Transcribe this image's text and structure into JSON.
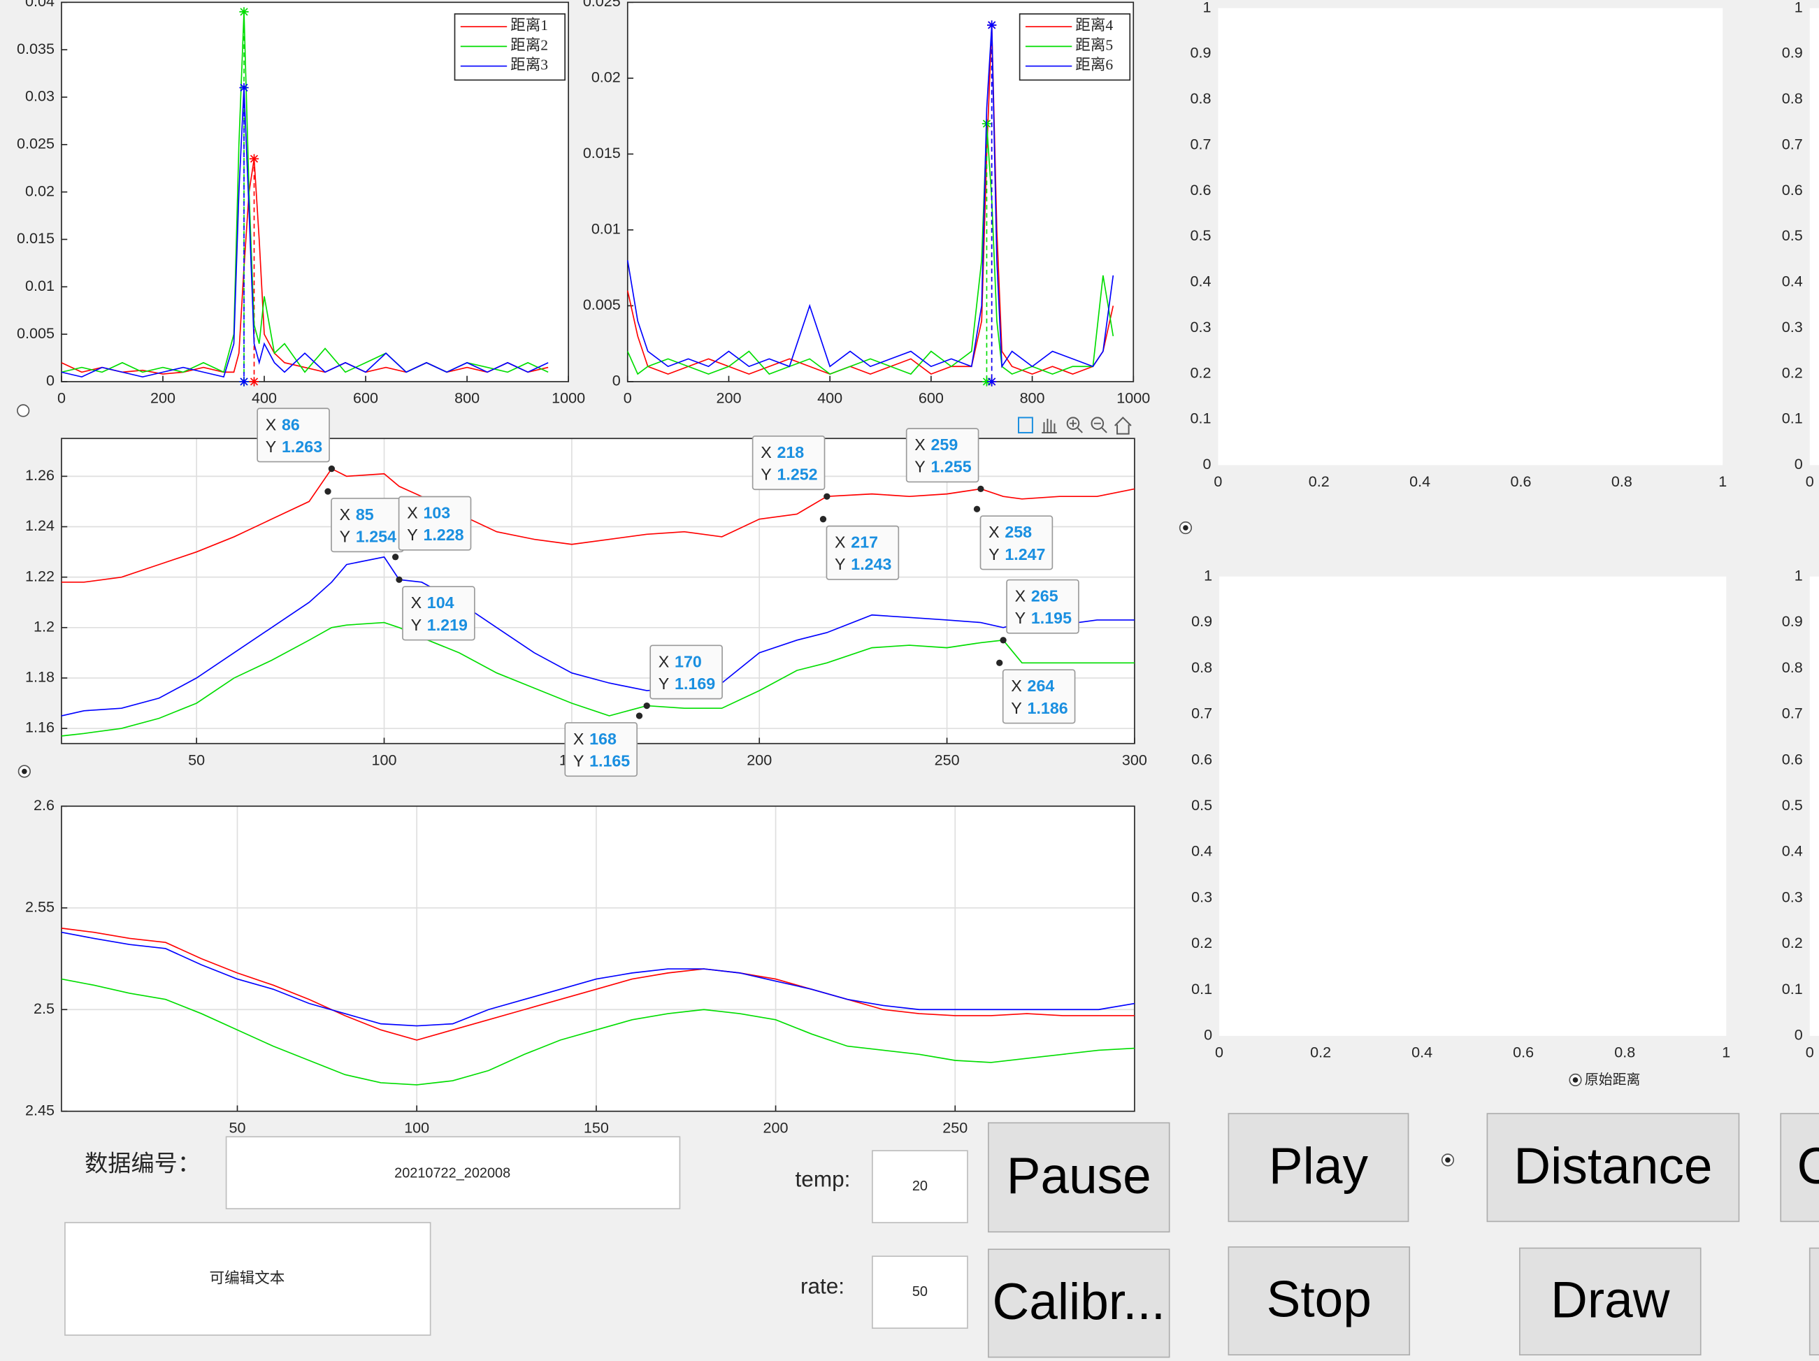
{
  "chart_data": [
    {
      "type": "line",
      "xlim": [
        0,
        1000
      ],
      "xticks": [
        0,
        200,
        400,
        600,
        800,
        1000
      ],
      "ylim": [
        0,
        0.04
      ],
      "yticks": [
        0,
        0.005,
        0.01,
        0.015,
        0.02,
        0.025,
        0.03,
        0.035,
        0.04
      ],
      "grid": false,
      "legend": "northeast",
      "peak_markers": true,
      "x": [
        0,
        40,
        80,
        120,
        160,
        200,
        240,
        280,
        320,
        340,
        350,
        360,
        370,
        380,
        390,
        400,
        420,
        440,
        480,
        520,
        560,
        600,
        640,
        680,
        720,
        760,
        800,
        840,
        880,
        920,
        960
      ],
      "series": [
        {
          "name": "距离1",
          "color": "#ff0000",
          "values": [
            0.002,
            0.001,
            0.0015,
            0.001,
            0.0012,
            0.0008,
            0.001,
            0.0015,
            0.001,
            0.001,
            0.003,
            0.012,
            0.02,
            0.0235,
            0.015,
            0.005,
            0.003,
            0.002,
            0.0015,
            0.001,
            0.002,
            0.001,
            0.0015,
            0.001,
            0.002,
            0.001,
            0.0015,
            0.001,
            0.002,
            0.001,
            0.0015
          ]
        },
        {
          "name": "距离2",
          "color": "#00dd00",
          "values": [
            0.001,
            0.0015,
            0.001,
            0.002,
            0.001,
            0.0015,
            0.001,
            0.002,
            0.001,
            0.005,
            0.025,
            0.039,
            0.02,
            0.006,
            0.004,
            0.009,
            0.003,
            0.004,
            0.001,
            0.0035,
            0.001,
            0.002,
            0.003,
            0.001,
            0.002,
            0.001,
            0.002,
            0.0015,
            0.001,
            0.002,
            0.001
          ]
        },
        {
          "name": "距离3",
          "color": "#0000ff",
          "values": [
            0.001,
            0.0005,
            0.0015,
            0.001,
            0.0005,
            0.001,
            0.0015,
            0.001,
            0.0005,
            0.004,
            0.02,
            0.031,
            0.018,
            0.004,
            0.002,
            0.004,
            0.002,
            0.001,
            0.003,
            0.001,
            0.002,
            0.001,
            0.003,
            0.001,
            0.002,
            0.001,
            0.002,
            0.001,
            0.002,
            0.001,
            0.002
          ]
        }
      ]
    },
    {
      "type": "line",
      "xlim": [
        0,
        1000
      ],
      "xticks": [
        0,
        200,
        400,
        600,
        800,
        1000
      ],
      "ylim": [
        0,
        0.025
      ],
      "yticks": [
        0,
        0.005,
        0.01,
        0.015,
        0.02,
        0.025
      ],
      "grid": false,
      "legend": "northeast",
      "peak_markers": true,
      "x": [
        0,
        20,
        40,
        80,
        120,
        160,
        200,
        240,
        280,
        320,
        360,
        400,
        440,
        480,
        520,
        560,
        600,
        640,
        680,
        700,
        710,
        720,
        730,
        740,
        760,
        800,
        840,
        880,
        920,
        940,
        960
      ],
      "series": [
        {
          "name": "距离4",
          "color": "#ff0000",
          "values": [
            0.006,
            0.003,
            0.001,
            0.0005,
            0.001,
            0.0015,
            0.001,
            0.0005,
            0.001,
            0.0015,
            0.001,
            0.0005,
            0.001,
            0.0005,
            0.001,
            0.0015,
            0.0005,
            0.001,
            0.001,
            0.004,
            0.015,
            0.0235,
            0.01,
            0.002,
            0.001,
            0.0005,
            0.001,
            0.0005,
            0.001,
            0.002,
            0.005
          ]
        },
        {
          "name": "距离5",
          "color": "#00dd00",
          "values": [
            0.002,
            0.0005,
            0.001,
            0.0015,
            0.001,
            0.0005,
            0.001,
            0.002,
            0.0005,
            0.001,
            0.0015,
            0.0005,
            0.001,
            0.0015,
            0.001,
            0.0005,
            0.002,
            0.001,
            0.002,
            0.008,
            0.017,
            0.012,
            0.004,
            0.001,
            0.0005,
            0.001,
            0.0005,
            0.001,
            0.001,
            0.007,
            0.003
          ]
        },
        {
          "name": "距离6",
          "color": "#0000ff",
          "values": [
            0.008,
            0.004,
            0.002,
            0.001,
            0.0015,
            0.001,
            0.002,
            0.001,
            0.0015,
            0.001,
            0.005,
            0.001,
            0.002,
            0.001,
            0.0015,
            0.002,
            0.001,
            0.0015,
            0.001,
            0.005,
            0.018,
            0.0235,
            0.008,
            0.001,
            0.002,
            0.001,
            0.002,
            0.0015,
            0.001,
            0.002,
            0.007
          ]
        }
      ]
    },
    {
      "type": "line",
      "xlim": [
        14,
        300
      ],
      "xticks": [
        50,
        100,
        150,
        200,
        250,
        300
      ],
      "ylim": [
        1.154,
        1.275
      ],
      "yticks": [
        1.16,
        1.18,
        1.2,
        1.22,
        1.24,
        1.26
      ],
      "grid": true,
      "x": [
        14,
        20,
        30,
        40,
        50,
        60,
        70,
        80,
        86,
        90,
        100,
        104,
        110,
        120,
        130,
        140,
        150,
        160,
        170,
        180,
        190,
        200,
        210,
        218,
        230,
        240,
        250,
        259,
        265,
        270,
        280,
        290,
        300
      ],
      "series": [
        {
          "color": "#ff0000",
          "values": [
            1.218,
            1.218,
            1.22,
            1.225,
            1.23,
            1.236,
            1.243,
            1.25,
            1.263,
            1.26,
            1.261,
            1.256,
            1.252,
            1.245,
            1.238,
            1.235,
            1.233,
            1.235,
            1.237,
            1.238,
            1.236,
            1.243,
            1.245,
            1.252,
            1.253,
            1.252,
            1.253,
            1.255,
            1.252,
            1.251,
            1.252,
            1.252,
            1.255
          ]
        },
        {
          "color": "#0000ff",
          "values": [
            1.165,
            1.167,
            1.168,
            1.172,
            1.18,
            1.19,
            1.2,
            1.21,
            1.218,
            1.225,
            1.228,
            1.219,
            1.218,
            1.21,
            1.2,
            1.19,
            1.182,
            1.178,
            1.175,
            1.176,
            1.178,
            1.19,
            1.195,
            1.198,
            1.205,
            1.204,
            1.203,
            1.202,
            1.2,
            1.202,
            1.201,
            1.203,
            1.203
          ]
        },
        {
          "color": "#00dd00",
          "values": [
            1.157,
            1.158,
            1.16,
            1.164,
            1.17,
            1.18,
            1.187,
            1.195,
            1.2,
            1.201,
            1.202,
            1.2,
            1.196,
            1.19,
            1.182,
            1.176,
            1.17,
            1.165,
            1.169,
            1.168,
            1.168,
            1.175,
            1.183,
            1.186,
            1.192,
            1.193,
            1.192,
            1.194,
            1.195,
            1.186,
            1.186,
            1.186,
            1.186
          ]
        }
      ],
      "datatip_axes": [
        "X",
        "Y"
      ],
      "datatips": [
        {
          "x": 86,
          "y": 1.263
        },
        {
          "x": 85,
          "y": 1.254
        },
        {
          "x": 103,
          "y": 1.228
        },
        {
          "x": 104,
          "y": 1.219
        },
        {
          "x": 218,
          "y": 1.252
        },
        {
          "x": 217,
          "y": 1.243
        },
        {
          "x": 259,
          "y": 1.255
        },
        {
          "x": 258,
          "y": 1.247
        },
        {
          "x": 265,
          "y": 1.195
        },
        {
          "x": 264,
          "y": 1.186
        },
        {
          "x": 170,
          "y": 1.169
        },
        {
          "x": 168,
          "y": 1.165
        }
      ]
    },
    {
      "type": "line",
      "xlim": [
        1,
        300
      ],
      "xticks": [
        50,
        100,
        150,
        200,
        250
      ],
      "ylim": [
        2.45,
        2.6
      ],
      "yticks": [
        2.45,
        2.5,
        2.55,
        2.6
      ],
      "grid": true,
      "x": [
        1,
        10,
        20,
        30,
        40,
        50,
        60,
        70,
        80,
        90,
        100,
        110,
        120,
        130,
        140,
        150,
        160,
        170,
        180,
        190,
        200,
        210,
        220,
        230,
        240,
        250,
        260,
        270,
        280,
        290,
        300
      ],
      "series": [
        {
          "color": "#ff0000",
          "values": [
            2.54,
            2.538,
            2.535,
            2.533,
            2.525,
            2.518,
            2.512,
            2.505,
            2.497,
            2.49,
            2.485,
            2.49,
            2.495,
            2.5,
            2.505,
            2.51,
            2.515,
            2.518,
            2.52,
            2.518,
            2.515,
            2.51,
            2.505,
            2.5,
            2.498,
            2.497,
            2.497,
            2.498,
            2.497,
            2.497,
            2.497
          ]
        },
        {
          "color": "#0000ff",
          "values": [
            2.538,
            2.535,
            2.532,
            2.53,
            2.522,
            2.515,
            2.51,
            2.503,
            2.498,
            2.493,
            2.492,
            2.493,
            2.5,
            2.505,
            2.51,
            2.515,
            2.518,
            2.52,
            2.52,
            2.518,
            2.514,
            2.51,
            2.505,
            2.502,
            2.5,
            2.5,
            2.5,
            2.5,
            2.5,
            2.5,
            2.503
          ]
        },
        {
          "color": "#00dd00",
          "values": [
            2.515,
            2.512,
            2.508,
            2.505,
            2.498,
            2.49,
            2.482,
            2.475,
            2.468,
            2.464,
            2.463,
            2.465,
            2.47,
            2.478,
            2.485,
            2.49,
            2.495,
            2.498,
            2.5,
            2.498,
            2.495,
            2.488,
            2.482,
            2.48,
            2.478,
            2.475,
            2.474,
            2.476,
            2.478,
            2.48,
            2.481
          ]
        }
      ]
    },
    {
      "type": "line",
      "xlim": [
        0,
        1
      ],
      "xticks": [
        0,
        0.2,
        0.4,
        0.6,
        0.8,
        1
      ],
      "ylim": [
        0,
        1
      ],
      "yticks": [
        0,
        0.1,
        0.2,
        0.3,
        0.4,
        0.5,
        0.6,
        0.7,
        0.8,
        0.9,
        1
      ],
      "grid": false
    },
    {
      "type": "line",
      "xlim": [
        0,
        1
      ],
      "xticks": [
        0,
        0.2,
        0.4,
        0.6,
        0.8,
        1
      ],
      "ylim": [
        0,
        1
      ],
      "yticks": [
        0,
        0.1,
        0.2,
        0.3,
        0.4,
        0.5,
        0.6,
        0.7,
        0.8,
        0.9,
        1
      ],
      "grid": false
    },
    {
      "type": "line",
      "xlim": [
        0,
        1
      ],
      "xticks": [
        0
      ],
      "ylim": [
        0,
        1
      ],
      "yticks": [
        0,
        0.1,
        0.2,
        0.3,
        0.4,
        0.5,
        0.6,
        0.7,
        0.8,
        0.9,
        1
      ],
      "grid": false
    },
    {
      "type": "line",
      "xlim": [
        0,
        1
      ],
      "xticks": [
        0
      ],
      "ylim": [
        0,
        1
      ],
      "yticks": [
        0,
        0.1,
        0.2,
        0.3,
        0.4,
        0.5,
        0.6,
        0.7,
        0.8,
        0.9,
        1
      ],
      "grid": false
    }
  ],
  "controls": {
    "data_id_label": "数据编号：",
    "data_id_value": "20210722_202008",
    "editable_text": "可编辑文本",
    "temp_label": "temp:",
    "temp_value": 20,
    "rate_label": "rate:",
    "rate_value": 50,
    "buttons": [
      "Pause",
      "Calibr...",
      "Play",
      "Stop",
      "Distance",
      "Draw",
      "C"
    ],
    "radio_label": "原始距离"
  }
}
